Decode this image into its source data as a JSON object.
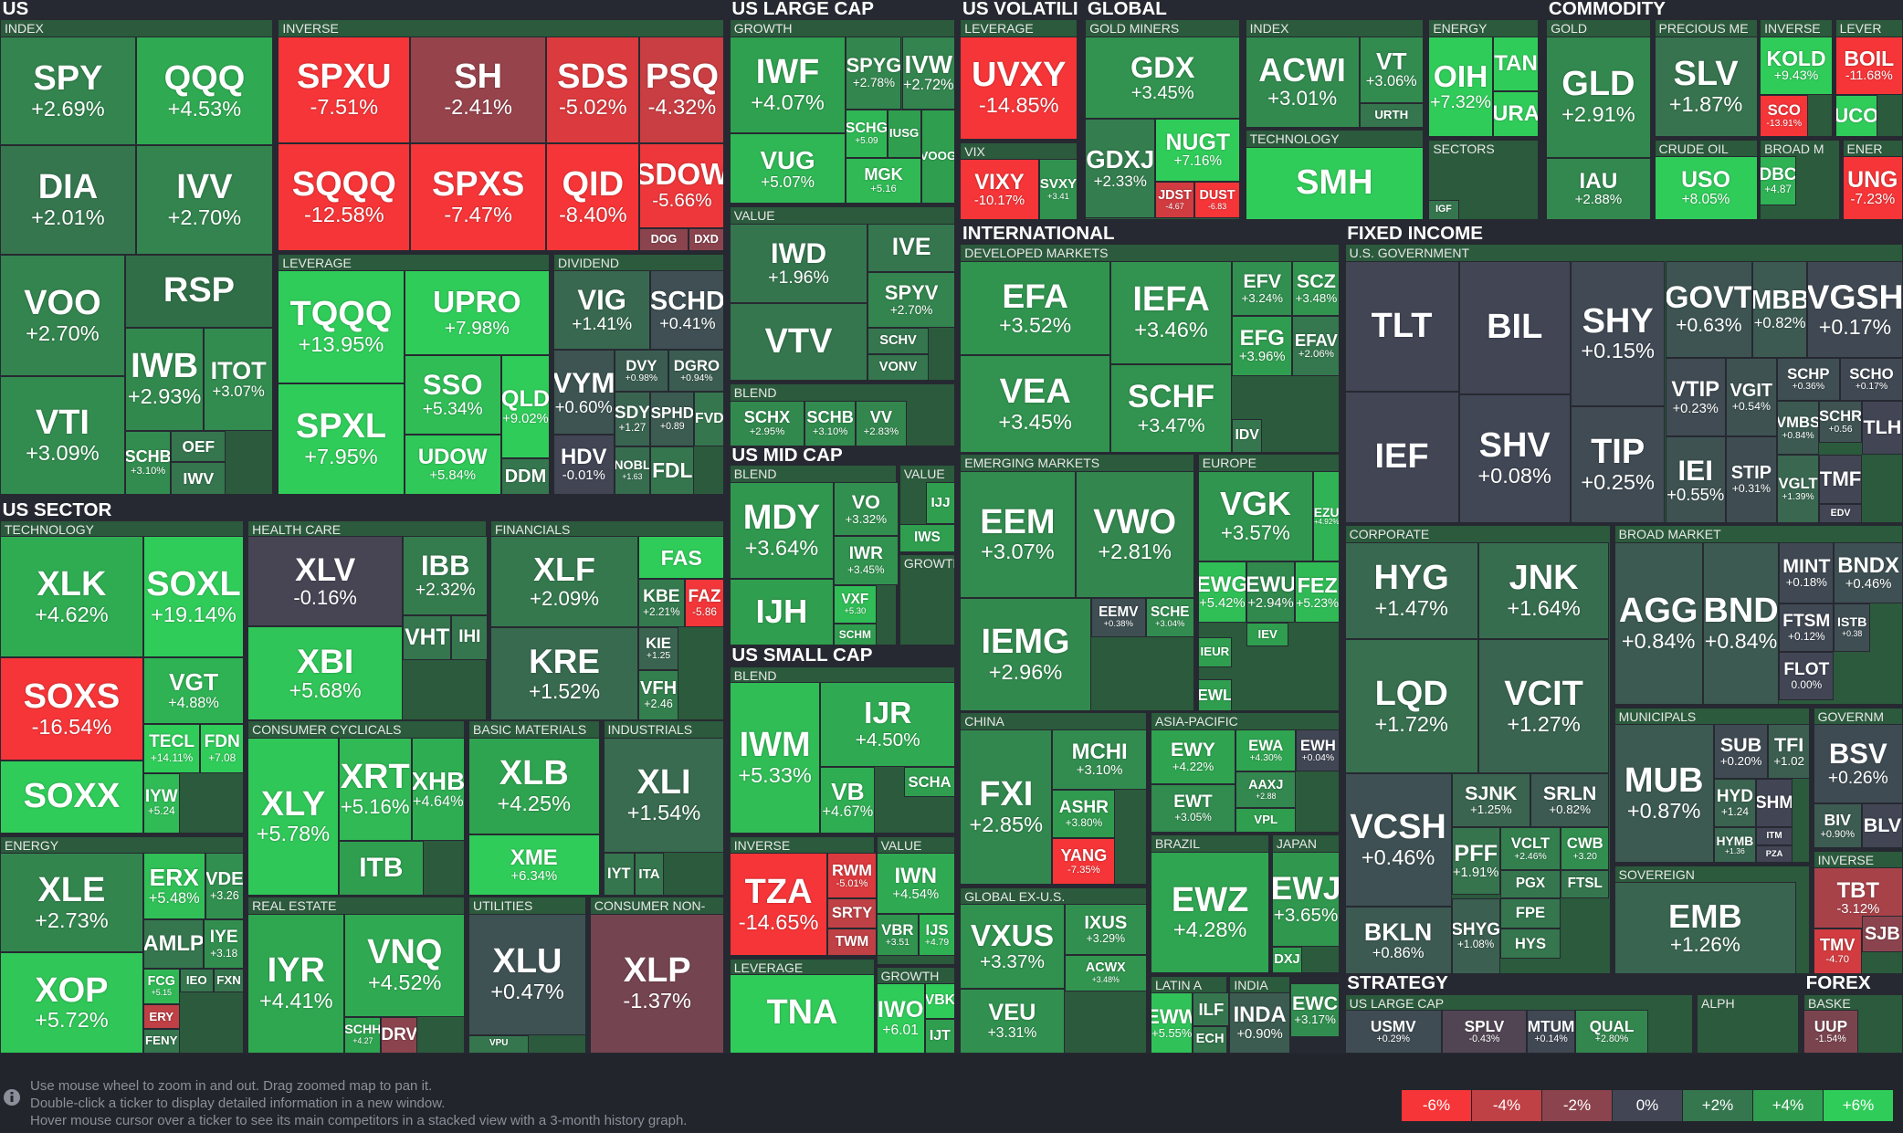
{
  "sections": [
    "US",
    "US LARGE CAP",
    "US VOLATILI",
    "GLOBAL",
    "COMMODITY",
    "INTERNATIONAL",
    "FIXED INCOME",
    "US SECTOR",
    "US MID CAP",
    "US SMALL CAP",
    "STRATEGY",
    "FOREX"
  ],
  "groups": [
    "INDEX",
    "INVERSE",
    "LEVERAGE",
    "DIVIDEND",
    "TECHNOLOGY",
    "ENERGY",
    "HEALTH CARE",
    "FINANCIALS",
    "CONSUMER CYCLICALS",
    "BASIC MATERIALS",
    "INDUSTRIALS",
    "REAL ESTATE",
    "UTILITIES",
    "CONSUMER NON-",
    "GROWTH",
    "VALUE",
    "BLEND",
    "BLEND",
    "VALUE",
    "GROWTH",
    "BLEND",
    "INVERSE",
    "VALUE",
    "LEVERAGE",
    "GROWTH",
    "LEVERAGE",
    "VIX",
    "GOLD MINERS",
    "INDEX",
    "TECHNOLOGY",
    "ENERGY",
    "SECTORS",
    "GOLD",
    "PRECIOUS ME",
    "INVERSE",
    "LEVER",
    "CRUDE OIL",
    "BROAD M",
    "ENER",
    "DEVELOPED MARKETS",
    "EMERGING MARKETS",
    "EUROPE",
    "CHINA",
    "ASIA-PACIFIC",
    "BRAZIL",
    "JAPAN",
    "GLOBAL EX-U.S.",
    "LATIN A",
    "INDIA",
    "U.S. GOVERNMENT",
    "CORPORATE",
    "BROAD MARKET",
    "MUNICIPALS",
    "GOVERNM",
    "SOVEREIGN",
    "INVERSE",
    "US LARGE CAP",
    "ALPH",
    "BASKE"
  ],
  "tiles": [
    {
      "ticker": "SPY",
      "change": "+2.69%"
    },
    {
      "ticker": "QQQ",
      "change": "+4.53%"
    },
    {
      "ticker": "DIA",
      "change": "+2.01%"
    },
    {
      "ticker": "IVV",
      "change": "+2.70%"
    },
    {
      "ticker": "VOO",
      "change": "+2.70%"
    },
    {
      "ticker": "RSP",
      "color": "#2f6e46"
    },
    {
      "ticker": "VTI",
      "change": "+3.09%"
    },
    {
      "ticker": "IWB",
      "change": "+2.93%"
    },
    {
      "ticker": "ITOT",
      "change": "+3.07%"
    },
    {
      "ticker": "SCHB",
      "change": "+3.10%"
    },
    {
      "ticker": "OEF",
      "color": "#35764e"
    },
    {
      "ticker": "IWV",
      "color": "#35764e"
    },
    {
      "ticker": "SPXU",
      "change": "-7.51%"
    },
    {
      "ticker": "SH",
      "change": "-2.41%"
    },
    {
      "ticker": "SDS",
      "change": "-5.02%"
    },
    {
      "ticker": "PSQ",
      "change": "-4.32%"
    },
    {
      "ticker": "SQQQ",
      "change": "-12.58%"
    },
    {
      "ticker": "SPXS",
      "change": "-7.47%"
    },
    {
      "ticker": "QID",
      "change": "-8.40%"
    },
    {
      "ticker": "SDOW",
      "change": "-5.66%"
    },
    {
      "ticker": "DOG",
      "color": "#8b444e"
    },
    {
      "ticker": "DXD",
      "color": "#8b444e"
    },
    {
      "ticker": "TQQQ",
      "change": "+13.95%"
    },
    {
      "ticker": "UPRO",
      "change": "+7.98%"
    },
    {
      "ticker": "SPXL",
      "change": "+7.95%"
    },
    {
      "ticker": "SSO",
      "change": "+5.34%"
    },
    {
      "ticker": "QLD",
      "change": "+9.02%"
    },
    {
      "ticker": "UDOW",
      "change": "+5.84%"
    },
    {
      "ticker": "DDM",
      "color": "#35764e"
    },
    {
      "ticker": "VIG",
      "change": "+1.41%"
    },
    {
      "ticker": "SCHD",
      "change": "+0.41%"
    },
    {
      "ticker": "VYM",
      "change": "+0.60%"
    },
    {
      "ticker": "DVY",
      "change": "+0.98%"
    },
    {
      "ticker": "DGRO",
      "change": "+0.94%"
    },
    {
      "ticker": "SDY",
      "change": "+1.27"
    },
    {
      "ticker": "SPHD",
      "change": "+0.89"
    },
    {
      "ticker": "FVD",
      "color": "#35764e"
    },
    {
      "ticker": "HDV",
      "change": "-0.01%"
    },
    {
      "ticker": "NOBL",
      "change": "+1.63"
    },
    {
      "ticker": "FDL",
      "color": "#35764e"
    },
    {
      "ticker": "XLK",
      "change": "+4.62%"
    },
    {
      "ticker": "SOXL",
      "change": "+19.14%"
    },
    {
      "ticker": "SOXS",
      "change": "-16.54%"
    },
    {
      "ticker": "VGT",
      "change": "+4.88%"
    },
    {
      "ticker": "TECL",
      "change": "+14.11%"
    },
    {
      "ticker": "FDN",
      "change": "+7.08"
    },
    {
      "ticker": "SOXX",
      "color": "#30cc5a"
    },
    {
      "ticker": "IYW",
      "change": "+5.24"
    },
    {
      "ticker": "XLE",
      "change": "+2.73%"
    },
    {
      "ticker": "XOP",
      "change": "+5.72%"
    },
    {
      "ticker": "ERX",
      "change": "+5.48%"
    },
    {
      "ticker": "VDE",
      "change": "+3.26"
    },
    {
      "ticker": "AMLP",
      "color": "#35764e"
    },
    {
      "ticker": "IYE",
      "change": "+3.18"
    },
    {
      "ticker": "FCG",
      "change": "+5.15"
    },
    {
      "ticker": "IEO",
      "color": "#35764e"
    },
    {
      "ticker": "FXN",
      "color": "#35764e"
    },
    {
      "ticker": "ERY",
      "color": "#bf4045"
    },
    {
      "ticker": "FENY",
      "color": "#35764e"
    },
    {
      "ticker": "XLV",
      "change": "-0.16%"
    },
    {
      "ticker": "IBB",
      "change": "+2.32%"
    },
    {
      "ticker": "XBI",
      "change": "+5.68%"
    },
    {
      "ticker": "VHT",
      "color": "#35764e"
    },
    {
      "ticker": "IHI",
      "color": "#35764e"
    },
    {
      "ticker": "XLF",
      "change": "+2.09%"
    },
    {
      "ticker": "FAS",
      "color": "#30cc5a"
    },
    {
      "ticker": "KBE",
      "change": "+2.21%"
    },
    {
      "ticker": "FAZ",
      "change": "-5.86"
    },
    {
      "ticker": "KRE",
      "change": "+1.52%"
    },
    {
      "ticker": "KIE",
      "change": "+1.25"
    },
    {
      "ticker": "VFH",
      "change": "+2.46"
    },
    {
      "ticker": "XLY",
      "change": "+5.78%"
    },
    {
      "ticker": "XRT",
      "change": "+5.16%"
    },
    {
      "ticker": "XHB",
      "change": "+4.64%"
    },
    {
      "ticker": "ITB",
      "color": "#2f9e4f"
    },
    {
      "ticker": "XLB",
      "change": "+4.25%"
    },
    {
      "ticker": "XME",
      "change": "+6.34%"
    },
    {
      "ticker": "XLI",
      "change": "+1.54%"
    },
    {
      "ticker": "IYT",
      "color": "#35764e"
    },
    {
      "ticker": "ITA",
      "color": "#35764e"
    },
    {
      "ticker": "IYR",
      "change": "+4.41%"
    },
    {
      "ticker": "VNQ",
      "change": "+4.52%"
    },
    {
      "ticker": "SCHH",
      "change": "+4.27"
    },
    {
      "ticker": "DRV",
      "color": "#8b444e"
    },
    {
      "ticker": "XLU",
      "change": "+0.47%"
    },
    {
      "ticker": "VPU",
      "color": "#35764e"
    },
    {
      "ticker": "XLP",
      "change": "-1.37%"
    },
    {
      "ticker": "IWF",
      "change": "+4.07%"
    },
    {
      "ticker": "SPYG",
      "change": "+2.78%"
    },
    {
      "ticker": "IVW",
      "change": "+2.72%"
    },
    {
      "ticker": "SCHG",
      "change": "+5.09"
    },
    {
      "ticker": "IUSG",
      "color": "#2f9e4f"
    },
    {
      "ticker": "VUG",
      "change": "+5.07%"
    },
    {
      "ticker": "MGK",
      "change": "+5.16"
    },
    {
      "ticker": "VOOG",
      "color": "#2f9e4f"
    },
    {
      "ticker": "IWD",
      "change": "+1.96%"
    },
    {
      "ticker": "IVE",
      "color": "#35764e"
    },
    {
      "ticker": "SPYV",
      "change": "+2.70%"
    },
    {
      "ticker": "VTV",
      "color": "#35764e"
    },
    {
      "ticker": "SCHV",
      "color": "#35764e"
    },
    {
      "ticker": "VONV",
      "color": "#35764e"
    },
    {
      "ticker": "SCHX",
      "change": "+2.95%"
    },
    {
      "ticker": "SCHB",
      "change": "+3.10%"
    },
    {
      "ticker": "VV",
      "change": "+2.83%"
    },
    {
      "ticker": "MDY",
      "change": "+3.64%"
    },
    {
      "ticker": "VO",
      "change": "+3.32%"
    },
    {
      "ticker": "IWR",
      "change": "+3.45%"
    },
    {
      "ticker": "IJH",
      "color": "#2f9e4f"
    },
    {
      "ticker": "VXF",
      "change": "+5.30"
    },
    {
      "ticker": "SCHM",
      "color": "#2f9e4f"
    },
    {
      "ticker": "IJJ",
      "color": "#2f9e4f"
    },
    {
      "ticker": "IWS",
      "color": "#2f9e4f"
    },
    {
      "ticker": "IWM",
      "change": "+5.33%"
    },
    {
      "ticker": "IJR",
      "change": "+4.50%"
    },
    {
      "ticker": "VB",
      "change": "+4.67%"
    },
    {
      "ticker": "SCHA",
      "color": "#2f9e4f"
    },
    {
      "ticker": "TZA",
      "change": "-14.65%"
    },
    {
      "ticker": "RWM",
      "change": "-5.01%"
    },
    {
      "ticker": "SRTY",
      "color": "#bf4045"
    },
    {
      "ticker": "TWM",
      "color": "#bf4045"
    },
    {
      "ticker": "IWN",
      "change": "+4.54%"
    },
    {
      "ticker": "VBR",
      "change": "+3.51"
    },
    {
      "ticker": "IJS",
      "change": "+4.79"
    },
    {
      "ticker": "TNA",
      "color": "#30cc5a"
    },
    {
      "ticker": "IWO",
      "change": "+6.01"
    },
    {
      "ticker": "VBK",
      "color": "#30cc5a"
    },
    {
      "ticker": "IJT",
      "color": "#2f9e4f"
    },
    {
      "ticker": "UVXY",
      "change": "-14.85%"
    },
    {
      "ticker": "VIXY",
      "change": "-10.17%"
    },
    {
      "ticker": "SVXY",
      "change": "+3.41"
    },
    {
      "ticker": "GDX",
      "change": "+3.45%"
    },
    {
      "ticker": "GDXJ",
      "change": "+2.33%"
    },
    {
      "ticker": "NUGT",
      "change": "+7.16%"
    },
    {
      "ticker": "JDST",
      "change": "-4.67"
    },
    {
      "ticker": "DUST",
      "change": "-6.83"
    },
    {
      "ticker": "ACWI",
      "change": "+3.01%"
    },
    {
      "ticker": "VT",
      "change": "+3.06%"
    },
    {
      "ticker": "URTH",
      "color": "#35764e"
    },
    {
      "ticker": "SMH",
      "color": "#30cc5a"
    },
    {
      "ticker": "OIH",
      "change": "+7.32%"
    },
    {
      "ticker": "TAN",
      "color": "#30cc5a"
    },
    {
      "ticker": "URA",
      "color": "#30cc5a"
    },
    {
      "ticker": "IGF",
      "color": "#35764e"
    },
    {
      "ticker": "GLD",
      "change": "+2.91%"
    },
    {
      "ticker": "IAU",
      "change": "+2.88%"
    },
    {
      "ticker": "SLV",
      "change": "+1.87%"
    },
    {
      "ticker": "KOLD",
      "change": "+9.43%"
    },
    {
      "ticker": "SCO",
      "change": "-13.91%"
    },
    {
      "ticker": "BOIL",
      "change": "-11.68%"
    },
    {
      "ticker": "UCO",
      "color": "#30cc5a"
    },
    {
      "ticker": "USO",
      "change": "+8.05%"
    },
    {
      "ticker": "DBC",
      "change": "+4.87"
    },
    {
      "ticker": "UNG",
      "change": "-7.23%"
    },
    {
      "ticker": "EFA",
      "change": "+3.52%"
    },
    {
      "ticker": "IEFA",
      "change": "+3.46%"
    },
    {
      "ticker": "EFV",
      "change": "+3.24%"
    },
    {
      "ticker": "SCZ",
      "change": "+3.48%"
    },
    {
      "ticker": "VEA",
      "change": "+3.45%"
    },
    {
      "ticker": "EFG",
      "change": "+3.96%"
    },
    {
      "ticker": "EFAV",
      "change": "+2.06%"
    },
    {
      "ticker": "SCHF",
      "change": "+3.47%"
    },
    {
      "ticker": "IDV",
      "color": "#35764e"
    },
    {
      "ticker": "EEM",
      "change": "+3.07%"
    },
    {
      "ticker": "VWO",
      "change": "+2.81%"
    },
    {
      "ticker": "IEMG",
      "change": "+2.96%"
    },
    {
      "ticker": "EEMV",
      "change": "+0.38%"
    },
    {
      "ticker": "SCHE",
      "change": "+3.04%"
    },
    {
      "ticker": "VGK",
      "change": "+3.57%"
    },
    {
      "ticker": "EZU",
      "change": "+4.92%"
    },
    {
      "ticker": "EWG",
      "change": "+5.42%"
    },
    {
      "ticker": "EWU",
      "change": "+2.94%"
    },
    {
      "ticker": "FEZ",
      "change": "+5.23%"
    },
    {
      "ticker": "IEV",
      "color": "#2f9e4f"
    },
    {
      "ticker": "IEUR",
      "color": "#2f9e4f"
    },
    {
      "ticker": "EWL",
      "color": "#2f9e4f"
    },
    {
      "ticker": "FXI",
      "change": "+2.85%"
    },
    {
      "ticker": "MCHI",
      "change": "+3.10%"
    },
    {
      "ticker": "ASHR",
      "change": "+3.80%"
    },
    {
      "ticker": "YANG",
      "change": "-7.35%"
    },
    {
      "ticker": "EWY",
      "change": "+4.22%"
    },
    {
      "ticker": "EWA",
      "change": "+4.30%"
    },
    {
      "ticker": "EWH",
      "change": "+0.04%"
    },
    {
      "ticker": "AAXJ",
      "change": "+2.88"
    },
    {
      "ticker": "EWT",
      "change": "+3.05%"
    },
    {
      "ticker": "VPL",
      "color": "#2f9e4f"
    },
    {
      "ticker": "EWZ",
      "change": "+4.28%"
    },
    {
      "ticker": "EWJ",
      "change": "+3.65%"
    },
    {
      "ticker": "DXJ",
      "color": "#2f9e4f"
    },
    {
      "ticker": "VXUS",
      "change": "+3.37%"
    },
    {
      "ticker": "IXUS",
      "change": "+3.29%"
    },
    {
      "ticker": "ACWX",
      "change": "+3.48%"
    },
    {
      "ticker": "VEU",
      "change": "+3.31%"
    },
    {
      "ticker": "EWW",
      "change": "+5.55%"
    },
    {
      "ticker": "ILF",
      "color": "#35764e"
    },
    {
      "ticker": "ECH",
      "color": "#35764e"
    },
    {
      "ticker": "INDA",
      "change": "+0.90%"
    },
    {
      "ticker": "EWC",
      "change": "+3.17%"
    },
    {
      "ticker": "TLT",
      "color": "#414554"
    },
    {
      "ticker": "BIL",
      "color": "#414554"
    },
    {
      "ticker": "SHY",
      "change": "+0.15%"
    },
    {
      "ticker": "GOVT",
      "change": "+0.63%"
    },
    {
      "ticker": "MBB",
      "change": "+0.82%"
    },
    {
      "ticker": "VGSH",
      "change": "+0.17%"
    },
    {
      "ticker": "IEF",
      "color": "#414554"
    },
    {
      "ticker": "SHV",
      "change": "+0.08%"
    },
    {
      "ticker": "TIP",
      "change": "+0.25%"
    },
    {
      "ticker": "VTIP",
      "change": "+0.23%"
    },
    {
      "ticker": "VGIT",
      "change": "+0.54%"
    },
    {
      "ticker": "SCHP",
      "change": "+0.36%"
    },
    {
      "ticker": "SCHO",
      "change": "+0.17%"
    },
    {
      "ticker": "VMBS",
      "change": "+0.84%"
    },
    {
      "ticker": "SCHR",
      "change": "+0.56"
    },
    {
      "ticker": "TLH",
      "color": "#414554"
    },
    {
      "ticker": "IEI",
      "change": "+0.55%"
    },
    {
      "ticker": "STIP",
      "change": "+0.31%"
    },
    {
      "ticker": "VGLT",
      "change": "+1.39%"
    },
    {
      "ticker": "TMF",
      "color": "#414554"
    },
    {
      "ticker": "EDV",
      "color": "#414554"
    },
    {
      "ticker": "HYG",
      "change": "+1.47%"
    },
    {
      "ticker": "JNK",
      "change": "+1.64%"
    },
    {
      "ticker": "LQD",
      "change": "+1.72%"
    },
    {
      "ticker": "VCIT",
      "change": "+1.27%"
    },
    {
      "ticker": "VCSH",
      "change": "+0.46%"
    },
    {
      "ticker": "BKLN",
      "change": "+0.86%"
    },
    {
      "ticker": "SJNK",
      "change": "+1.25%"
    },
    {
      "ticker": "SRLN",
      "change": "+0.82%"
    },
    {
      "ticker": "PFF",
      "change": "+1.91%"
    },
    {
      "ticker": "VCLT",
      "change": "+2.46%"
    },
    {
      "ticker": "CWB",
      "change": "+3.20"
    },
    {
      "ticker": "PGX",
      "color": "#35764e"
    },
    {
      "ticker": "FTSL",
      "color": "#35764e"
    },
    {
      "ticker": "SHYG",
      "change": "+1.08%"
    },
    {
      "ticker": "FPE",
      "color": "#35764e"
    },
    {
      "ticker": "HYS",
      "color": "#35764e"
    },
    {
      "ticker": "AGG",
      "change": "+0.84%"
    },
    {
      "ticker": "BND",
      "change": "+0.84%"
    },
    {
      "ticker": "MINT",
      "change": "+0.18%"
    },
    {
      "ticker": "BNDX",
      "change": "+0.46%"
    },
    {
      "ticker": "FTSM",
      "change": "+0.12%"
    },
    {
      "ticker": "ISTB",
      "change": "+0.38"
    },
    {
      "ticker": "FLOT",
      "change": "0.00%"
    },
    {
      "ticker": "MUB",
      "change": "+0.87%"
    },
    {
      "ticker": "SUB",
      "change": "+0.20%"
    },
    {
      "ticker": "TFI",
      "change": "+1.02"
    },
    {
      "ticker": "HYD",
      "change": "+1.24"
    },
    {
      "ticker": "SHM",
      "color": "#414554"
    },
    {
      "ticker": "HYMB",
      "change": "+1.36"
    },
    {
      "ticker": "ITM",
      "color": "#414554"
    },
    {
      "ticker": "PZA",
      "color": "#414554"
    },
    {
      "ticker": "BSV",
      "change": "+0.26%"
    },
    {
      "ticker": "BIV",
      "change": "+0.90%"
    },
    {
      "ticker": "BLV",
      "color": "#414554"
    },
    {
      "ticker": "EMB",
      "change": "+1.26%"
    },
    {
      "ticker": "TBT",
      "change": "-3.12%"
    },
    {
      "ticker": "TMV",
      "change": "-4.70"
    },
    {
      "ticker": "SJB",
      "color": "#8b444e"
    },
    {
      "ticker": "USMV",
      "change": "+0.29%"
    },
    {
      "ticker": "SPLV",
      "change": "-0.43%"
    },
    {
      "ticker": "MTUM",
      "change": "+0.14%"
    },
    {
      "ticker": "QUAL",
      "change": "+2.80%"
    },
    {
      "ticker": "UUP",
      "change": "-1.54%"
    }
  ],
  "footer": {
    "hints": [
      "Use mouse wheel to zoom in and out. Drag zoomed map to pan it.",
      "Double-click a ticker to display detailed information in a new window.",
      "Hover mouse cursor over a ticker to see its main competitors in a stacked view with a 3-month history graph."
    ],
    "legend": [
      "-6%",
      "-4%",
      "-2%",
      "0%",
      "+2%",
      "+4%",
      "+6%"
    ]
  }
}
